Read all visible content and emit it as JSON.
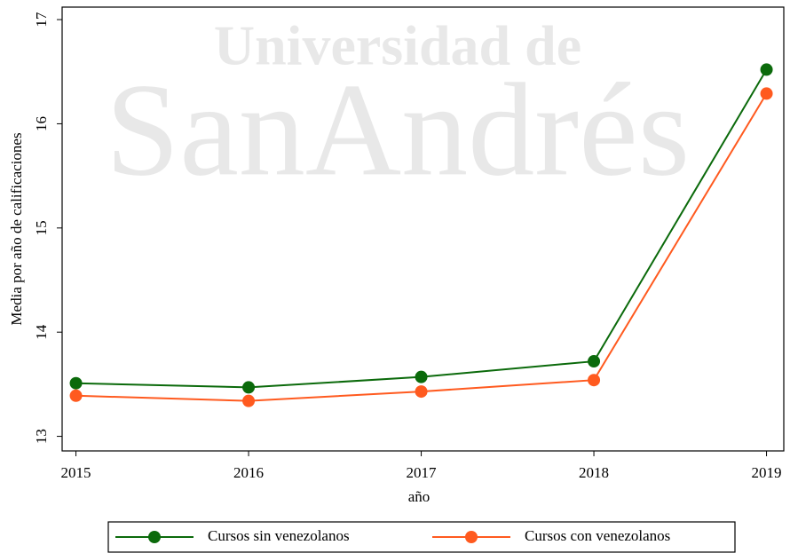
{
  "chart_data": {
    "type": "line",
    "watermark": [
      "Universidad de",
      "SanAndrés"
    ],
    "x_label": "año",
    "y_label": "Media por año de calificaciones",
    "x": [
      2015,
      2016,
      2017,
      2018,
      2019
    ],
    "series": [
      {
        "name": "Cursos sin venezolanos",
        "color": "#0b6a0b",
        "values": [
          13.51,
          13.47,
          13.57,
          13.72,
          16.52
        ]
      },
      {
        "name": "Cursos con venezolanos",
        "color": "#ff5a1f",
        "values": [
          13.39,
          13.34,
          13.43,
          13.54,
          16.29
        ]
      }
    ],
    "xlim": [
      2014.92,
      2019.1
    ],
    "xticks": [
      2015,
      2016,
      2017,
      2018,
      2019
    ],
    "ylim": [
      12.86,
      17.12
    ],
    "yticks": [
      13,
      14,
      15,
      16,
      17
    ],
    "grid": false,
    "legend": "bottom"
  }
}
